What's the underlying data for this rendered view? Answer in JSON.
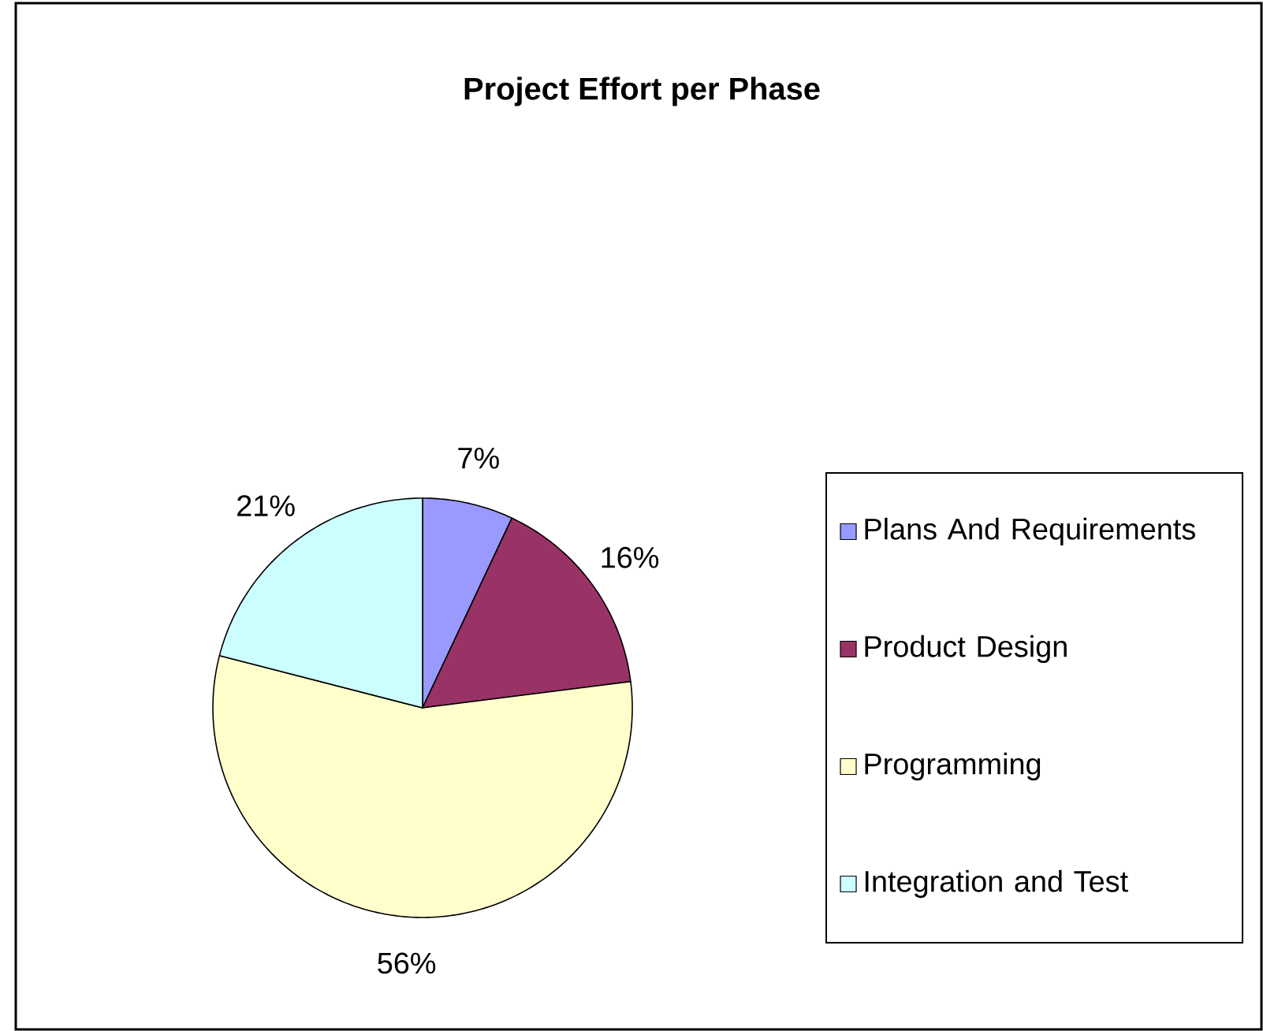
{
  "chart_data": {
    "type": "pie",
    "title": "Project Effort per Phase",
    "categories": [
      "Plans And Requirements",
      "Product Design",
      "Programming",
      "Integration and Test"
    ],
    "values": [
      7,
      16,
      56,
      21
    ],
    "value_labels": [
      "7%",
      "16%",
      "56%",
      "21%"
    ],
    "colors": [
      "#9999ff",
      "#993366",
      "#ffffcc",
      "#ccffff"
    ],
    "legend": "right"
  }
}
